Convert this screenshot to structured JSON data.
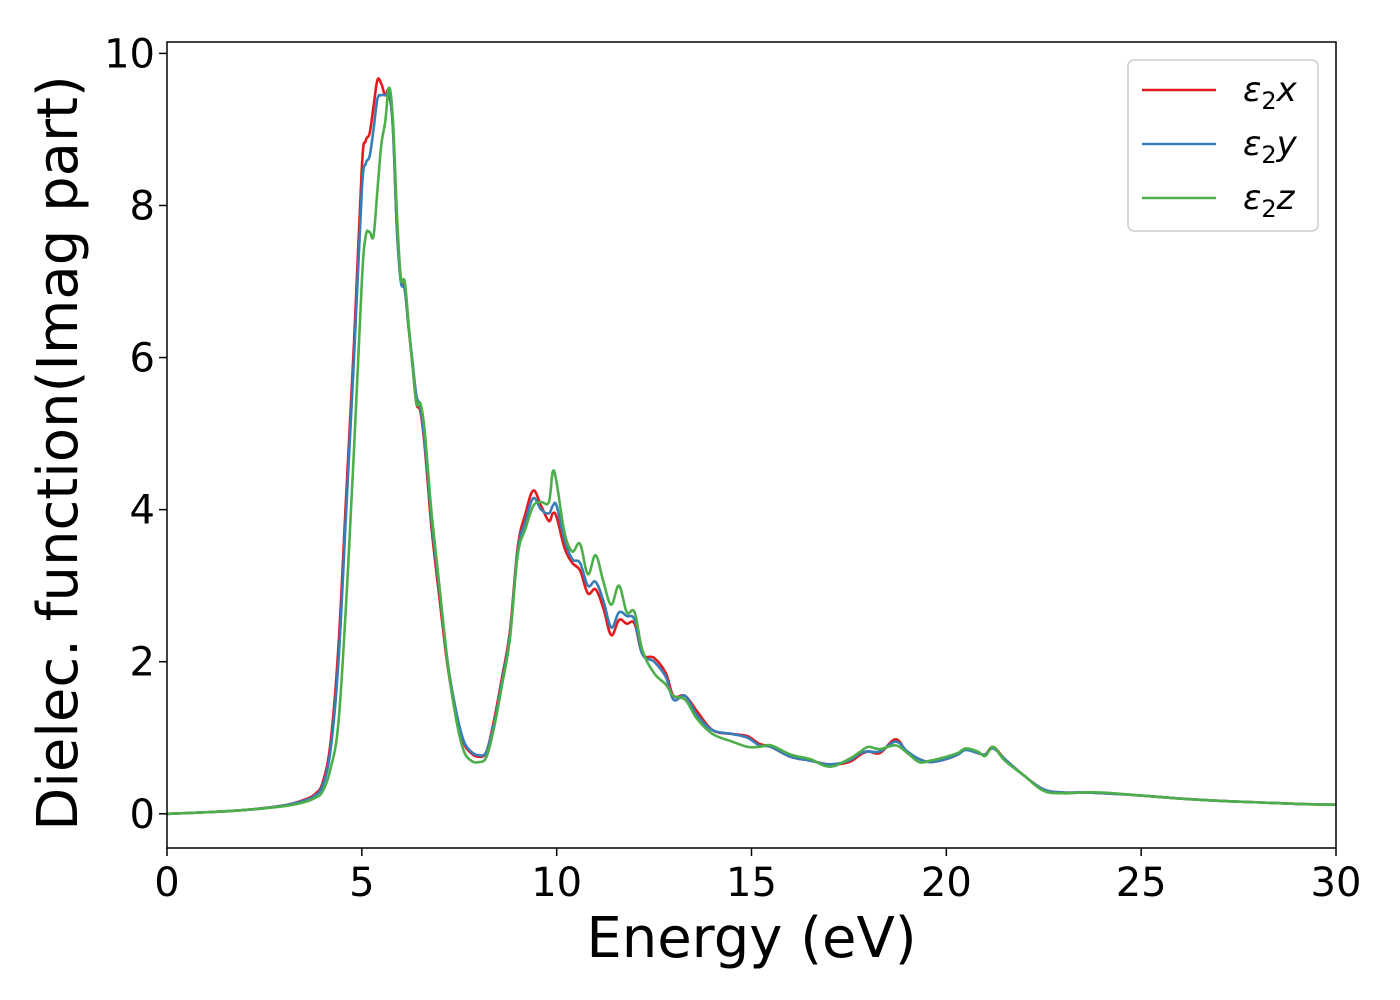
{
  "chart_data": {
    "type": "line",
    "title": "",
    "xlabel": "Energy (eV)",
    "ylabel": "Dielec. function(Imag part)",
    "xlim": [
      0,
      30
    ],
    "ylim": [
      -0.45,
      10.15
    ],
    "xticks": [
      0,
      5,
      10,
      15,
      20,
      25,
      30
    ],
    "yticks": [
      0,
      2,
      4,
      6,
      8,
      10
    ],
    "grid": false,
    "legend_position": "top-right",
    "series": [
      {
        "name": "ε₂x",
        "legend_base": "ε",
        "legend_sub": "2",
        "legend_var": "x",
        "color": "#e41a1c",
        "x": [
          0,
          1,
          2,
          3,
          3.5,
          3.8,
          4.0,
          4.2,
          4.4,
          4.6,
          4.8,
          5.0,
          5.1,
          5.2,
          5.3,
          5.4,
          5.5,
          5.6,
          5.7,
          5.8,
          5.9,
          6.0,
          6.1,
          6.2,
          6.3,
          6.4,
          6.5,
          6.6,
          6.7,
          6.8,
          7.0,
          7.2,
          7.4,
          7.6,
          7.8,
          8.0,
          8.2,
          8.4,
          8.6,
          8.8,
          9.0,
          9.2,
          9.4,
          9.6,
          9.8,
          9.9,
          10.0,
          10.2,
          10.4,
          10.6,
          10.8,
          11.0,
          11.2,
          11.4,
          11.6,
          11.8,
          12.0,
          12.2,
          12.5,
          12.8,
          13.0,
          13.3,
          13.6,
          14.0,
          14.5,
          14.9,
          15.2,
          15.5,
          16.0,
          16.5,
          17.0,
          17.5,
          17.8,
          18.0,
          18.3,
          18.7,
          19.0,
          19.3,
          19.6,
          20.0,
          20.3,
          20.5,
          20.8,
          21.0,
          21.2,
          21.5,
          22.0,
          22.5,
          23.0,
          23.5,
          24.0,
          25.0,
          26.0,
          27.0,
          28.0,
          29.0,
          30.0
        ],
        "y": [
          0.0,
          0.02,
          0.05,
          0.11,
          0.18,
          0.26,
          0.42,
          0.95,
          2.2,
          4.2,
          6.2,
          8.5,
          8.85,
          8.95,
          9.3,
          9.65,
          9.6,
          9.45,
          9.5,
          9.0,
          7.7,
          7.05,
          6.9,
          6.4,
          5.9,
          5.4,
          5.3,
          4.9,
          4.3,
          3.7,
          2.8,
          1.95,
          1.35,
          0.95,
          0.8,
          0.75,
          0.82,
          1.25,
          1.8,
          2.4,
          3.5,
          3.95,
          4.25,
          4.05,
          3.85,
          3.95,
          3.9,
          3.5,
          3.3,
          3.2,
          2.9,
          2.95,
          2.7,
          2.35,
          2.55,
          2.5,
          2.5,
          2.1,
          2.05,
          1.85,
          1.55,
          1.55,
          1.35,
          1.1,
          1.05,
          1.02,
          0.92,
          0.88,
          0.75,
          0.7,
          0.65,
          0.68,
          0.78,
          0.82,
          0.8,
          0.98,
          0.8,
          0.72,
          0.68,
          0.72,
          0.78,
          0.85,
          0.8,
          0.78,
          0.88,
          0.72,
          0.5,
          0.32,
          0.28,
          0.28,
          0.27,
          0.24,
          0.2,
          0.17,
          0.15,
          0.13,
          0.12
        ]
      },
      {
        "name": "ε₂y",
        "legend_base": "ε",
        "legend_sub": "2",
        "legend_var": "y",
        "color": "#377eb8",
        "x": [
          0,
          1,
          2,
          3,
          3.5,
          3.8,
          4.0,
          4.2,
          4.4,
          4.6,
          4.8,
          5.0,
          5.1,
          5.2,
          5.3,
          5.4,
          5.5,
          5.6,
          5.7,
          5.8,
          5.9,
          6.0,
          6.1,
          6.2,
          6.3,
          6.4,
          6.5,
          6.6,
          6.7,
          6.8,
          7.0,
          7.2,
          7.4,
          7.6,
          7.8,
          8.0,
          8.2,
          8.4,
          8.6,
          8.8,
          9.0,
          9.2,
          9.4,
          9.6,
          9.8,
          9.9,
          10.0,
          10.2,
          10.4,
          10.6,
          10.8,
          11.0,
          11.2,
          11.4,
          11.6,
          11.8,
          12.0,
          12.2,
          12.5,
          12.8,
          13.0,
          13.3,
          13.6,
          14.0,
          14.5,
          14.9,
          15.2,
          15.5,
          16.0,
          16.5,
          17.0,
          17.5,
          17.8,
          18.0,
          18.3,
          18.7,
          19.0,
          19.3,
          19.6,
          20.0,
          20.3,
          20.5,
          20.8,
          21.0,
          21.2,
          21.5,
          22.0,
          22.5,
          23.0,
          23.5,
          24.0,
          25.0,
          26.0,
          27.0,
          28.0,
          29.0,
          30.0
        ],
        "y": [
          0.0,
          0.02,
          0.05,
          0.11,
          0.17,
          0.24,
          0.38,
          0.85,
          2.0,
          4.0,
          6.0,
          8.2,
          8.55,
          8.65,
          9.0,
          9.4,
          9.45,
          9.45,
          9.45,
          9.0,
          7.7,
          7.0,
          6.9,
          6.4,
          5.95,
          5.5,
          5.35,
          4.95,
          4.4,
          3.8,
          2.9,
          2.0,
          1.4,
          0.98,
          0.82,
          0.77,
          0.82,
          1.2,
          1.75,
          2.35,
          3.45,
          3.85,
          4.15,
          4.0,
          3.95,
          4.05,
          4.05,
          3.6,
          3.35,
          3.3,
          3.0,
          3.05,
          2.8,
          2.45,
          2.65,
          2.6,
          2.55,
          2.1,
          2.0,
          1.8,
          1.5,
          1.55,
          1.3,
          1.1,
          1.05,
          1.0,
          0.9,
          0.88,
          0.75,
          0.7,
          0.65,
          0.7,
          0.8,
          0.82,
          0.82,
          0.95,
          0.82,
          0.72,
          0.68,
          0.72,
          0.78,
          0.84,
          0.8,
          0.78,
          0.86,
          0.72,
          0.5,
          0.32,
          0.28,
          0.28,
          0.27,
          0.24,
          0.2,
          0.17,
          0.15,
          0.13,
          0.12
        ]
      },
      {
        "name": "ε₂z",
        "legend_base": "ε",
        "legend_sub": "2",
        "legend_var": "z",
        "color": "#4daf4a",
        "x": [
          0,
          1,
          2,
          3,
          3.5,
          3.8,
          4.0,
          4.2,
          4.4,
          4.6,
          4.8,
          5.0,
          5.1,
          5.2,
          5.3,
          5.4,
          5.5,
          5.6,
          5.7,
          5.8,
          5.9,
          6.0,
          6.1,
          6.2,
          6.3,
          6.4,
          6.5,
          6.6,
          6.7,
          6.8,
          7.0,
          7.2,
          7.4,
          7.6,
          7.8,
          8.0,
          8.2,
          8.4,
          8.6,
          8.8,
          9.0,
          9.2,
          9.4,
          9.6,
          9.8,
          9.9,
          10.0,
          10.2,
          10.4,
          10.6,
          10.8,
          11.0,
          11.2,
          11.4,
          11.6,
          11.8,
          12.0,
          12.2,
          12.5,
          12.8,
          13.0,
          13.3,
          13.6,
          14.0,
          14.5,
          14.9,
          15.2,
          15.5,
          16.0,
          16.5,
          17.0,
          17.5,
          17.8,
          18.0,
          18.3,
          18.7,
          19.0,
          19.3,
          19.6,
          20.0,
          20.3,
          20.5,
          20.8,
          21.0,
          21.2,
          21.5,
          22.0,
          22.5,
          23.0,
          23.5,
          24.0,
          25.0,
          26.0,
          27.0,
          28.0,
          29.0,
          30.0
        ],
        "y": [
          0.0,
          0.02,
          0.05,
          0.1,
          0.15,
          0.21,
          0.3,
          0.6,
          1.2,
          2.8,
          4.8,
          7.0,
          7.6,
          7.65,
          7.6,
          8.2,
          8.8,
          9.1,
          9.55,
          9.1,
          7.9,
          7.05,
          7.0,
          6.45,
          5.9,
          5.4,
          5.4,
          5.1,
          4.5,
          3.9,
          2.95,
          2.0,
          1.3,
          0.85,
          0.7,
          0.68,
          0.75,
          1.15,
          1.7,
          2.3,
          3.4,
          3.75,
          4.05,
          4.1,
          4.1,
          4.5,
          4.35,
          3.7,
          3.45,
          3.55,
          3.15,
          3.4,
          3.05,
          2.75,
          3.0,
          2.65,
          2.65,
          2.15,
          1.85,
          1.7,
          1.55,
          1.5,
          1.25,
          1.05,
          0.95,
          0.88,
          0.88,
          0.9,
          0.78,
          0.72,
          0.62,
          0.72,
          0.82,
          0.88,
          0.85,
          0.9,
          0.8,
          0.68,
          0.7,
          0.75,
          0.8,
          0.86,
          0.82,
          0.76,
          0.88,
          0.7,
          0.5,
          0.3,
          0.27,
          0.28,
          0.28,
          0.24,
          0.2,
          0.17,
          0.15,
          0.13,
          0.12
        ]
      }
    ]
  }
}
